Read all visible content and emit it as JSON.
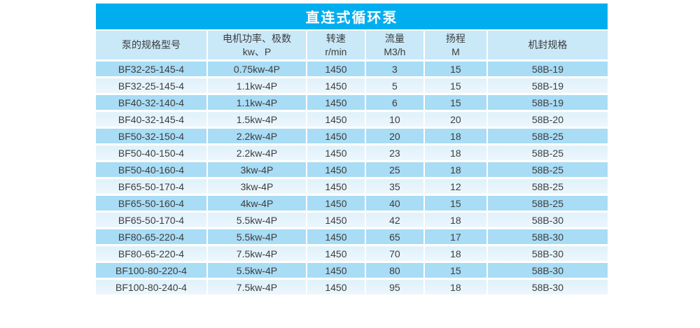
{
  "chart_data": {
    "type": "table",
    "title": "直连式循环泵",
    "columns": [
      {
        "line1": "泵的规格型号",
        "line2": ""
      },
      {
        "line1": "电机功率、极数",
        "line2": "kw、P"
      },
      {
        "line1": "转速",
        "line2": "r/min"
      },
      {
        "line1": "流量",
        "line2": "M3/h"
      },
      {
        "line1": "扬程",
        "line2": "M"
      },
      {
        "line1": "机封规格",
        "line2": ""
      }
    ],
    "rows": [
      [
        "BF32-25-145-4",
        "0.75kw-4P",
        "1450",
        "3",
        "15",
        "58B-19"
      ],
      [
        "BF32-25-145-4",
        "1.1kw-4P",
        "1450",
        "5",
        "15",
        "58B-19"
      ],
      [
        "BF40-32-140-4",
        "1.1kw-4P",
        "1450",
        "6",
        "15",
        "58B-19"
      ],
      [
        "BF40-32-145-4",
        "1.5kw-4P",
        "1450",
        "10",
        "20",
        "58B-20"
      ],
      [
        "BF50-32-150-4",
        "2.2kw-4P",
        "1450",
        "20",
        "18",
        "58B-25"
      ],
      [
        "BF50-40-150-4",
        "2.2kw-4P",
        "1450",
        "23",
        "18",
        "58B-25"
      ],
      [
        "BF50-40-160-4",
        "3kw-4P",
        "1450",
        "25",
        "18",
        "58B-25"
      ],
      [
        "BF65-50-170-4",
        "3kw-4P",
        "1450",
        "35",
        "12",
        "58B-25"
      ],
      [
        "BF65-50-160-4",
        "4kw-4P",
        "1450",
        "40",
        "15",
        "58B-25"
      ],
      [
        "BF65-50-170-4",
        "5.5kw-4P",
        "1450",
        "42",
        "18",
        "58B-30"
      ],
      [
        "BF80-65-220-4",
        "5.5kw-4P",
        "1450",
        "65",
        "17",
        "58B-30"
      ],
      [
        "BF80-65-220-4",
        "7.5kw-4P",
        "1450",
        "70",
        "18",
        "58B-30"
      ],
      [
        "BF100-80-220-4",
        "5.5kw-4P",
        "1450",
        "80",
        "15",
        "58B-30"
      ],
      [
        "BF100-80-240-4",
        "7.5kw-4P",
        "1450",
        "95",
        "18",
        "58B-30"
      ]
    ],
    "colors": {
      "title_bg": "#00aeef",
      "title_text": "#ffffff",
      "header_bg": "#c9e8f8",
      "row_odd_bg": "#a9dcf5",
      "row_even_bg": "#e7f4fc",
      "body_text": "#3d3d3d"
    }
  }
}
